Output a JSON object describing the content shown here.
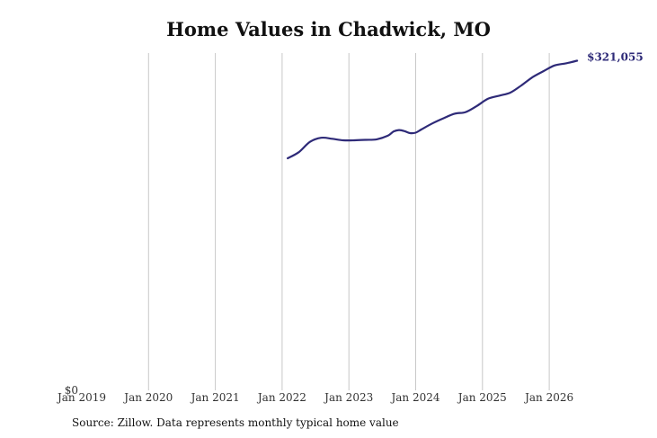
{
  "chart_data": {
    "type": "line",
    "title": "Home Values in Chadwick, MO",
    "source": "Source: Zillow. Data represents monthly typical home value",
    "x_ticks": [
      "Jan 2019",
      "Jan 2020",
      "Jan 2021",
      "Jan 2022",
      "Jan 2023",
      "Jan 2024",
      "Jan 2025",
      "Jan 2026"
    ],
    "y_tick_label": "$0",
    "end_label": "$321,055",
    "ylim": [
      0,
      325000
    ],
    "grid": "vertical",
    "line_color": "#2e2a78",
    "series": [
      {
        "points": [
          {
            "x": "2022-02",
            "y": 226000
          },
          {
            "x": "2022-04",
            "y": 232000
          },
          {
            "x": "2022-06",
            "y": 242000
          },
          {
            "x": "2022-08",
            "y": 246000
          },
          {
            "x": "2022-10",
            "y": 245000
          },
          {
            "x": "2022-12",
            "y": 243500
          },
          {
            "x": "2023-02",
            "y": 243500
          },
          {
            "x": "2023-04",
            "y": 244000
          },
          {
            "x": "2023-06",
            "y": 244500
          },
          {
            "x": "2023-08",
            "y": 248000
          },
          {
            "x": "2023-09",
            "y": 252000
          },
          {
            "x": "2023-10",
            "y": 253500
          },
          {
            "x": "2023-11",
            "y": 252500
          },
          {
            "x": "2023-12",
            "y": 250500
          },
          {
            "x": "2024-01",
            "y": 251000
          },
          {
            "x": "2024-02",
            "y": 254000
          },
          {
            "x": "2024-04",
            "y": 260000
          },
          {
            "x": "2024-06",
            "y": 265000
          },
          {
            "x": "2024-08",
            "y": 269500
          },
          {
            "x": "2024-10",
            "y": 271000
          },
          {
            "x": "2024-12",
            "y": 277000
          },
          {
            "x": "2025-02",
            "y": 284000
          },
          {
            "x": "2025-04",
            "y": 287000
          },
          {
            "x": "2025-06",
            "y": 290000
          },
          {
            "x": "2025-08",
            "y": 297000
          },
          {
            "x": "2025-10",
            "y": 305000
          },
          {
            "x": "2025-12",
            "y": 311000
          },
          {
            "x": "2026-02",
            "y": 316500
          },
          {
            "x": "2026-04",
            "y": 318500
          },
          {
            "x": "2026-06",
            "y": 321055
          }
        ]
      }
    ]
  }
}
